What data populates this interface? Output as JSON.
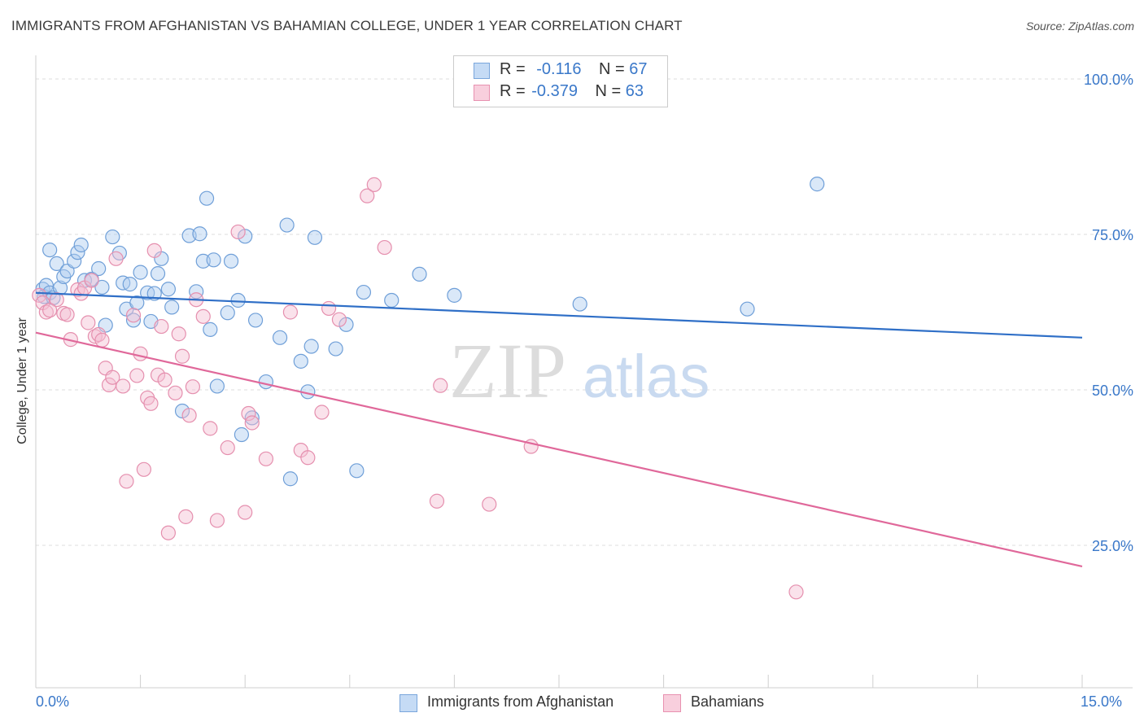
{
  "title": "IMMIGRANTS FROM AFGHANISTAN VS BAHAMIAN COLLEGE, UNDER 1 YEAR CORRELATION CHART",
  "source": "Source: ZipAtlas.com",
  "watermark": {
    "part1": "ZIP",
    "part2": "atlas"
  },
  "legend": {
    "rows": [
      {
        "r_label": "R =",
        "r_value": "-0.116",
        "n_label": "N =",
        "n_value": "67"
      },
      {
        "r_label": "R =",
        "r_value": "-0.379",
        "n_label": "N =",
        "n_value": "63"
      }
    ]
  },
  "bottom_legend": [
    "Immigrants from Afghanistan",
    "Bahamians"
  ],
  "x_axis_labels": {
    "min": "0.0%",
    "max": "15.0%"
  },
  "colors": {
    "blue_fill": "#aecbf0",
    "blue_stroke": "#6f9fd8",
    "blue_line": "#2f6fc7",
    "pink_fill": "#f5bfd2",
    "pink_stroke": "#e58fae",
    "pink_line": "#e0689a",
    "tick_text": "#3a78c9",
    "grid": "#dddddd"
  },
  "chart_data": {
    "type": "scatter",
    "title": "IMMIGRANTS FROM AFGHANISTAN VS BAHAMIAN COLLEGE, UNDER 1 YEAR CORRELATION CHART",
    "xlabel": "",
    "ylabel": "College, Under 1 year",
    "xlim": [
      0,
      15
    ],
    "ylim": [
      0,
      105
    ],
    "y_ticks": [
      {
        "value": 25,
        "label": "25.0%"
      },
      {
        "value": 50,
        "label": "50.0%"
      },
      {
        "value": 75,
        "label": "75.0%"
      },
      {
        "value": 100,
        "label": "100.0%"
      }
    ],
    "grid": true,
    "legend_position": "top-center",
    "series": [
      {
        "name": "Immigrants from Afghanistan",
        "color": "#aecbf0",
        "trend": {
          "x": [
            0,
            15
          ],
          "y": [
            65.6,
            58.4
          ]
        },
        "points": [
          [
            0.1,
            66.2
          ],
          [
            0.12,
            65.0
          ],
          [
            0.15,
            66.8
          ],
          [
            0.2,
            72.5
          ],
          [
            0.2,
            65.6
          ],
          [
            0.25,
            64.8
          ],
          [
            0.3,
            70.3
          ],
          [
            0.35,
            66.4
          ],
          [
            0.4,
            68.2
          ],
          [
            0.45,
            69.1
          ],
          [
            0.55,
            70.7
          ],
          [
            0.6,
            72.1
          ],
          [
            0.65,
            73.3
          ],
          [
            0.7,
            67.6
          ],
          [
            0.8,
            67.8
          ],
          [
            0.9,
            69.5
          ],
          [
            0.95,
            66.5
          ],
          [
            1.0,
            60.4
          ],
          [
            1.1,
            74.6
          ],
          [
            1.2,
            72.0
          ],
          [
            1.25,
            67.2
          ],
          [
            1.3,
            63.0
          ],
          [
            1.35,
            67.0
          ],
          [
            1.4,
            61.2
          ],
          [
            1.45,
            64.0
          ],
          [
            1.5,
            68.9
          ],
          [
            1.6,
            65.6
          ],
          [
            1.65,
            61.0
          ],
          [
            1.7,
            65.5
          ],
          [
            1.75,
            68.7
          ],
          [
            1.8,
            71.1
          ],
          [
            1.9,
            66.2
          ],
          [
            1.95,
            63.3
          ],
          [
            2.1,
            46.6
          ],
          [
            2.2,
            74.8
          ],
          [
            2.3,
            65.8
          ],
          [
            2.35,
            75.1
          ],
          [
            2.4,
            70.7
          ],
          [
            2.45,
            80.8
          ],
          [
            2.5,
            59.7
          ],
          [
            2.55,
            70.9
          ],
          [
            2.6,
            50.6
          ],
          [
            2.75,
            62.4
          ],
          [
            2.8,
            70.7
          ],
          [
            2.9,
            64.4
          ],
          [
            2.95,
            42.8
          ],
          [
            3.0,
            74.7
          ],
          [
            3.1,
            45.5
          ],
          [
            3.15,
            61.2
          ],
          [
            3.3,
            51.3
          ],
          [
            3.5,
            58.4
          ],
          [
            3.6,
            76.5
          ],
          [
            3.65,
            35.7
          ],
          [
            3.8,
            54.6
          ],
          [
            3.9,
            49.7
          ],
          [
            3.95,
            57.0
          ],
          [
            4.0,
            74.5
          ],
          [
            4.3,
            56.6
          ],
          [
            4.45,
            60.5
          ],
          [
            4.6,
            37.0
          ],
          [
            4.7,
            65.7
          ],
          [
            5.1,
            64.4
          ],
          [
            5.5,
            68.6
          ],
          [
            6.0,
            65.2
          ],
          [
            7.8,
            63.8
          ],
          [
            10.2,
            63.0
          ],
          [
            11.2,
            83.1
          ]
        ]
      },
      {
        "name": "Bahamians",
        "color": "#f5bfd2",
        "trend": {
          "x": [
            0,
            15
          ],
          "y": [
            59.2,
            21.6
          ]
        },
        "points": [
          [
            0.05,
            65.2
          ],
          [
            0.1,
            64.0
          ],
          [
            0.15,
            62.5
          ],
          [
            0.3,
            64.5
          ],
          [
            0.4,
            62.3
          ],
          [
            0.45,
            62.1
          ],
          [
            0.5,
            58.1
          ],
          [
            0.6,
            66.1
          ],
          [
            0.65,
            65.5
          ],
          [
            0.7,
            66.4
          ],
          [
            0.75,
            60.8
          ],
          [
            0.8,
            67.6
          ],
          [
            0.85,
            58.6
          ],
          [
            0.9,
            58.9
          ],
          [
            0.95,
            58.0
          ],
          [
            1.0,
            53.5
          ],
          [
            1.05,
            50.8
          ],
          [
            1.1,
            52.0
          ],
          [
            1.15,
            71.1
          ],
          [
            1.25,
            50.6
          ],
          [
            1.3,
            35.3
          ],
          [
            1.4,
            62.0
          ],
          [
            1.45,
            52.3
          ],
          [
            1.5,
            55.8
          ],
          [
            1.55,
            37.2
          ],
          [
            1.6,
            48.7
          ],
          [
            1.65,
            47.8
          ],
          [
            1.7,
            72.4
          ],
          [
            1.75,
            52.4
          ],
          [
            1.8,
            60.2
          ],
          [
            1.85,
            51.6
          ],
          [
            1.9,
            27.0
          ],
          [
            2.0,
            49.5
          ],
          [
            2.05,
            59.0
          ],
          [
            2.1,
            55.4
          ],
          [
            2.15,
            29.6
          ],
          [
            2.2,
            45.9
          ],
          [
            2.25,
            50.5
          ],
          [
            2.3,
            64.5
          ],
          [
            2.4,
            61.8
          ],
          [
            2.5,
            43.8
          ],
          [
            2.6,
            29.0
          ],
          [
            2.75,
            40.7
          ],
          [
            2.9,
            75.4
          ],
          [
            3.0,
            30.3
          ],
          [
            3.05,
            46.2
          ],
          [
            3.1,
            44.7
          ],
          [
            3.3,
            38.9
          ],
          [
            3.65,
            62.5
          ],
          [
            3.8,
            40.3
          ],
          [
            3.9,
            39.1
          ],
          [
            4.1,
            46.4
          ],
          [
            4.2,
            63.1
          ],
          [
            4.35,
            61.3
          ],
          [
            4.75,
            81.2
          ],
          [
            4.85,
            83.0
          ],
          [
            5.0,
            72.9
          ],
          [
            5.75,
            32.1
          ],
          [
            5.8,
            50.7
          ],
          [
            6.5,
            31.6
          ],
          [
            7.1,
            40.9
          ],
          [
            10.9,
            17.5
          ],
          [
            0.2,
            62.8
          ]
        ]
      }
    ]
  }
}
